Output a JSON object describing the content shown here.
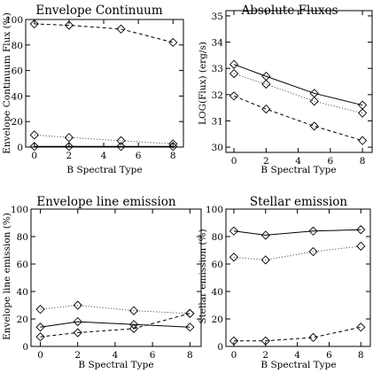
{
  "chart_data": [
    {
      "type": "line",
      "title": "Envelope Continuum",
      "xlabel": "B Spectral Type",
      "ylabel": "Envelope Continuum Flux  (%)",
      "xlim": [
        -0.5,
        8.6
      ],
      "ylim": [
        0,
        100
      ],
      "xticks": [
        0,
        2,
        4,
        6,
        8
      ],
      "yticks": [
        0,
        20,
        40,
        60,
        80,
        100
      ],
      "grid": false,
      "x": [
        0,
        2,
        5,
        8
      ],
      "series": [
        {
          "values": [
            96.5,
            95.5,
            92.5,
            82
          ],
          "style": "dashed",
          "color": "#000000",
          "marker": "diamond"
        },
        {
          "values": [
            9.5,
            7.5,
            5,
            2.5
          ],
          "style": "dotted",
          "color": "#555555",
          "marker": "diamond"
        },
        {
          "values": [
            0.5,
            0.5,
            0.5,
            0.5
          ],
          "style": "solid",
          "color": "#000000",
          "marker": "diamond"
        }
      ]
    },
    {
      "type": "line",
      "title": "Absolute Fluxes",
      "xlabel": "B Spectral Type",
      "ylabel": "LOG(Flux)  (erg/s)",
      "xlim": [
        -0.5,
        8.6
      ],
      "ylim": [
        29.8,
        35.2
      ],
      "xticks": [
        0,
        2,
        4,
        6,
        8
      ],
      "yticks": [
        30,
        31,
        32,
        33,
        34,
        35
      ],
      "grid": false,
      "x": [
        0,
        2,
        5,
        8
      ],
      "series": [
        {
          "values": [
            33.15,
            32.7,
            32.05,
            31.6
          ],
          "style": "solid",
          "color": "#000000",
          "marker": "diamond"
        },
        {
          "values": [
            32.8,
            32.4,
            31.75,
            31.3
          ],
          "style": "dotted",
          "color": "#555555",
          "marker": "diamond"
        },
        {
          "values": [
            31.95,
            31.45,
            30.8,
            30.25
          ],
          "style": "dashed",
          "color": "#000000",
          "marker": "diamond"
        }
      ]
    },
    {
      "type": "line",
      "title": "Envelope line emission",
      "xlabel": "B Spectral Type",
      "ylabel": "Envelope line emission (%)",
      "xlim": [
        -0.5,
        8.6
      ],
      "ylim": [
        0,
        100
      ],
      "xticks": [
        0,
        2,
        4,
        6,
        8
      ],
      "yticks": [
        0,
        20,
        40,
        60,
        80,
        100
      ],
      "grid": false,
      "x": [
        0,
        2,
        5,
        8
      ],
      "series": [
        {
          "values": [
            27,
            30,
            26,
            24
          ],
          "style": "dotted",
          "color": "#555555",
          "marker": "diamond"
        },
        {
          "values": [
            14,
            18,
            16,
            14
          ],
          "style": "solid",
          "color": "#000000",
          "marker": "diamond"
        },
        {
          "values": [
            7,
            10,
            13,
            24
          ],
          "style": "dashed",
          "color": "#000000",
          "marker": "diamond"
        }
      ]
    },
    {
      "type": "line",
      "title": "Stellar emission",
      "xlabel": "B Spectral Type",
      "ylabel": "Stellar emission (%)",
      "xlim": [
        -0.5,
        8.6
      ],
      "ylim": [
        0,
        100
      ],
      "xticks": [
        0,
        2,
        4,
        6,
        8
      ],
      "yticks": [
        0,
        20,
        40,
        60,
        80,
        100
      ],
      "grid": false,
      "x": [
        0,
        2,
        5,
        8
      ],
      "series": [
        {
          "values": [
            84,
            81,
            84,
            85
          ],
          "style": "solid",
          "color": "#000000",
          "marker": "diamond"
        },
        {
          "values": [
            65,
            63,
            69,
            73
          ],
          "style": "dotted",
          "color": "#555555",
          "marker": "diamond"
        },
        {
          "values": [
            4,
            4,
            6.5,
            14
          ],
          "style": "dashed",
          "color": "#000000",
          "marker": "diamond"
        }
      ]
    }
  ]
}
